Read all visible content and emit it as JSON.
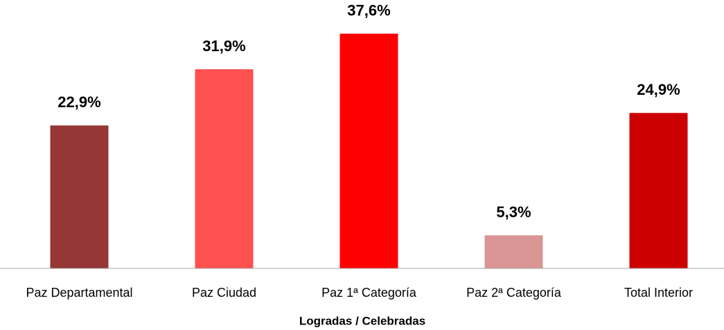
{
  "chart_data": {
    "type": "bar",
    "x_label": "Logradas / Celebradas",
    "categories": [
      "Paz Departamental",
      "Paz Ciudad",
      "Paz 1ª Categoría",
      "Paz 2ª Categoría",
      "Total Interior"
    ],
    "values": [
      22.9,
      31.9,
      37.6,
      5.3,
      24.9
    ],
    "value_labels": [
      "22,9%",
      "31,9%",
      "37,6%",
      "5,3%",
      "24,9%"
    ],
    "colors": [
      "#953735",
      "#ff5050",
      "#ff0000",
      "#d99694",
      "#cc0000"
    ],
    "ylim": [
      0,
      40
    ]
  }
}
